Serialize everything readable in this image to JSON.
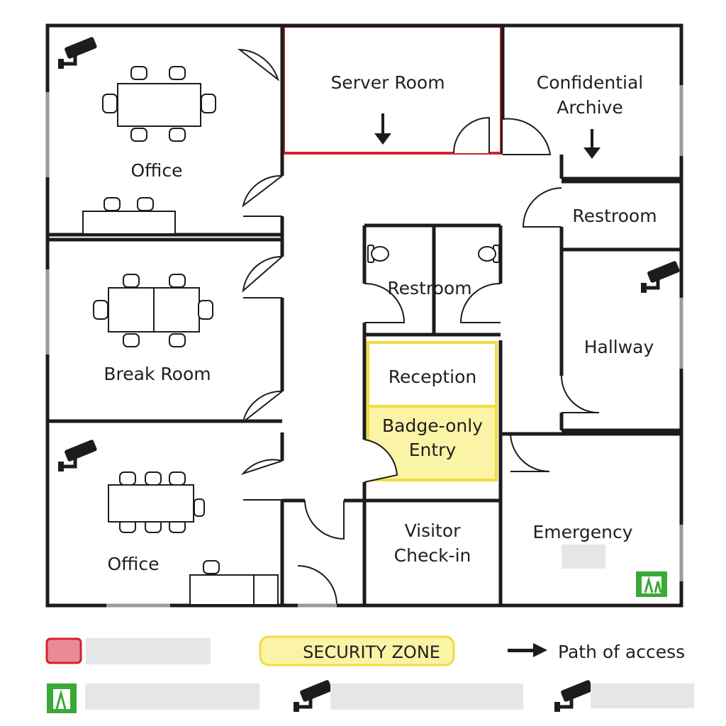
{
  "rooms": {
    "office_top": "Office",
    "server_room": "Server Room",
    "confidential_archive_line1": "Confidential",
    "confidential_archive_line2": "Archive",
    "restroom_right": "Restroom",
    "break_room": "Break Room",
    "restroom_center": "Restroom",
    "reception": "Reception",
    "badge_line1": "Badge-only",
    "badge_line2": "Entry",
    "hallway": "Hallway",
    "office_bottom": "Office",
    "visitor_line1": "Visitor",
    "visitor_line2": "Check-in",
    "emergency": "Emergency"
  },
  "legend": {
    "security_zone": "SECURITY ZONE",
    "path_of_access": "Path of access"
  },
  "colors": {
    "wall": "#1c1c1c",
    "restricted": "#d2232a",
    "restricted_fill": "#e88b94",
    "security_zone": "#f2dc3c",
    "security_zone_fill": "#fbf3a6",
    "emergency_exit": "#3aa935",
    "placeholder": "#e6e6e6"
  },
  "icons": [
    "security-camera-icon",
    "emergency-exit-icon",
    "arrow-right-icon",
    "arrow-down-icon",
    "toilet-icon",
    "table-icon",
    "chair-icon"
  ]
}
